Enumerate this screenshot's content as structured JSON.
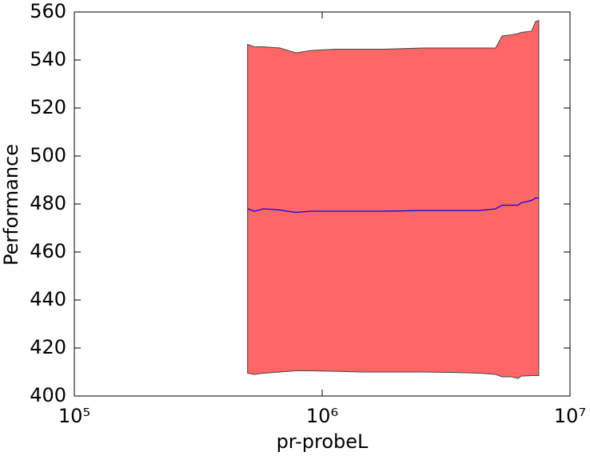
{
  "chart_data": {
    "type": "line",
    "xlabel": "pr-probeL",
    "ylabel": "Performance",
    "xscale": "log",
    "x": [
      500000,
      532000,
      581000,
      675000,
      783000,
      908000,
      1134000,
      1418000,
      1770000,
      2570000,
      3460000,
      4320000,
      5010000,
      5320000,
      5810000,
      6170000,
      6360000,
      7000000,
      7260000,
      7480000
    ],
    "values": [
      478,
      477,
      478,
      477.5,
      476.5,
      477,
      477,
      477,
      477,
      477.3,
      477.3,
      477.3,
      478,
      479.5,
      479.5,
      479.5,
      480.5,
      481.5,
      482.5,
      482.5
    ],
    "upper": [
      546.5,
      545.5,
      545.5,
      545,
      543,
      544,
      544.5,
      544.5,
      544.5,
      545,
      545,
      545,
      545,
      550,
      550.5,
      551,
      551.5,
      552,
      556,
      556.5
    ],
    "lower": [
      409.5,
      409,
      409.5,
      410,
      410.5,
      410.5,
      410.3,
      410,
      410,
      410,
      409.8,
      409.5,
      409,
      408,
      408,
      407.3,
      408.3,
      408.5,
      408.5,
      408.5
    ],
    "color": "#0000ff",
    "fill_color": "#ff6666",
    "edge_color": "#444444",
    "xlim": [
      100000,
      10000000
    ],
    "xticks": [
      {
        "value": 100000,
        "label": "10⁵"
      },
      {
        "value": 1000000,
        "label": "10⁶"
      },
      {
        "value": 10000000,
        "label": "10⁷"
      }
    ],
    "ylim": [
      400,
      560
    ],
    "yticks": [
      400,
      420,
      440,
      460,
      480,
      500,
      520,
      540,
      560
    ]
  }
}
